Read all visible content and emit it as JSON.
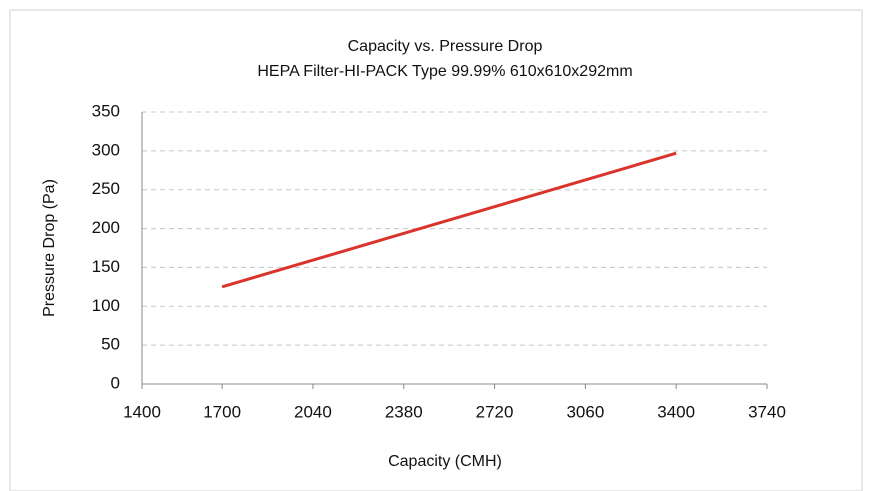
{
  "chart_data": {
    "type": "line",
    "title": "Capacity vs. Pressure Drop",
    "subtitle": "HEPA Filter-HI-PACK Type 99.99% 610x610x292mm",
    "x_label": "Capacity (CMH)",
    "y_label": "Pressure Drop (Pa)",
    "x": [
      1700,
      3400
    ],
    "series": [
      {
        "name": "Pressure Drop",
        "color": "#d9332b",
        "values": [
          125,
          297
        ]
      }
    ],
    "xlim": [
      1400,
      3740
    ],
    "xticks": [
      1400,
      1700,
      2040,
      2380,
      2720,
      3060,
      3400,
      3740
    ],
    "ylim": [
      0,
      350
    ],
    "yticks": [
      0,
      50,
      100,
      150,
      200,
      250,
      300,
      350
    ],
    "grid": true
  }
}
